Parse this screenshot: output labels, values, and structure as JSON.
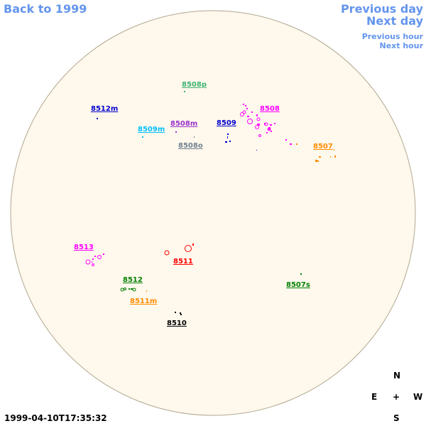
{
  "nav": {
    "back": "Back to 1999",
    "previous_day": "Previous day",
    "next_day": "Next day",
    "previous_hour": "Previous hour",
    "next_hour": "Next hour"
  },
  "colors": {
    "link": "#6495ed",
    "disk": "#fff8ec",
    "disk_border": "#b0a890"
  },
  "regions": [
    {
      "name": "8508p",
      "color": "#3cb371"
    },
    {
      "name": "8512m",
      "color": "#0000cd"
    },
    {
      "name": "8508m",
      "color": "#9932cc"
    },
    {
      "name": "8509",
      "color": "#0000cd"
    },
    {
      "name": "8508",
      "color": "#ff00ff"
    },
    {
      "name": "8509m",
      "color": "#00bfff"
    },
    {
      "name": "8508o",
      "color": "#708090"
    },
    {
      "name": "8507",
      "color": "#ff8c00"
    },
    {
      "name": "8513",
      "color": "#ff00ff"
    },
    {
      "name": "8511",
      "color": "#ff0000"
    },
    {
      "name": "8512",
      "color": "#008000"
    },
    {
      "name": "8507s",
      "color": "#008000"
    },
    {
      "name": "8511m",
      "color": "#ff8c00"
    },
    {
      "name": "8510",
      "color": "#000000"
    }
  ],
  "compass": {
    "n": "N",
    "s": "S",
    "e": "E",
    "w": "W",
    "center": "+"
  },
  "timestamp": "1999-04-10T17:35:32"
}
